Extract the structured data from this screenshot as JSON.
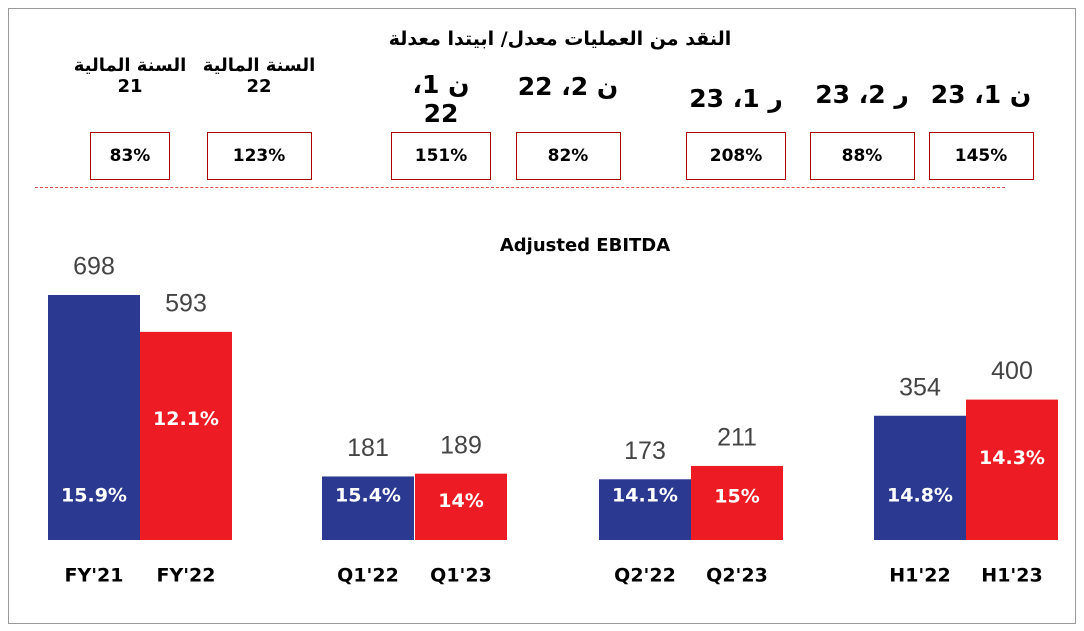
{
  "header": {
    "title": "النقد من العمليات معدل/ ابيتدا معدلة",
    "columns": [
      {
        "heading": "السنة المالية 21",
        "value": "83%"
      },
      {
        "heading": "السنة المالية 22",
        "value": "123%"
      },
      {
        "heading": "ن 1، 22",
        "value": "151%"
      },
      {
        "heading": "ن 2، 22",
        "value": "82%"
      },
      {
        "heading": "ر 1، 23",
        "value": "208%"
      },
      {
        "heading": "ر 2، 23",
        "value": "88%"
      },
      {
        "heading": "ن 1، 23",
        "value": "145%"
      }
    ]
  },
  "chart_data": {
    "type": "bar",
    "title": "Adjusted EBITDA",
    "categories": [
      "FY'21",
      "FY'22",
      "Q1'22",
      "Q1'23",
      "Q2'22",
      "Q2'23",
      "H1'22",
      "H1'23"
    ],
    "values": [
      698,
      593,
      181,
      189,
      173,
      211,
      354,
      400
    ],
    "colors": [
      "#2b3990",
      "#ed1c24",
      "#2b3990",
      "#ed1c24",
      "#2b3990",
      "#ed1c24",
      "#2b3990",
      "#ed1c24"
    ],
    "margin_labels": [
      "15.9%",
      "12.1%",
      "15.4%",
      "14%",
      "14.1%",
      "15%",
      "14.8%",
      "14.3%"
    ]
  }
}
